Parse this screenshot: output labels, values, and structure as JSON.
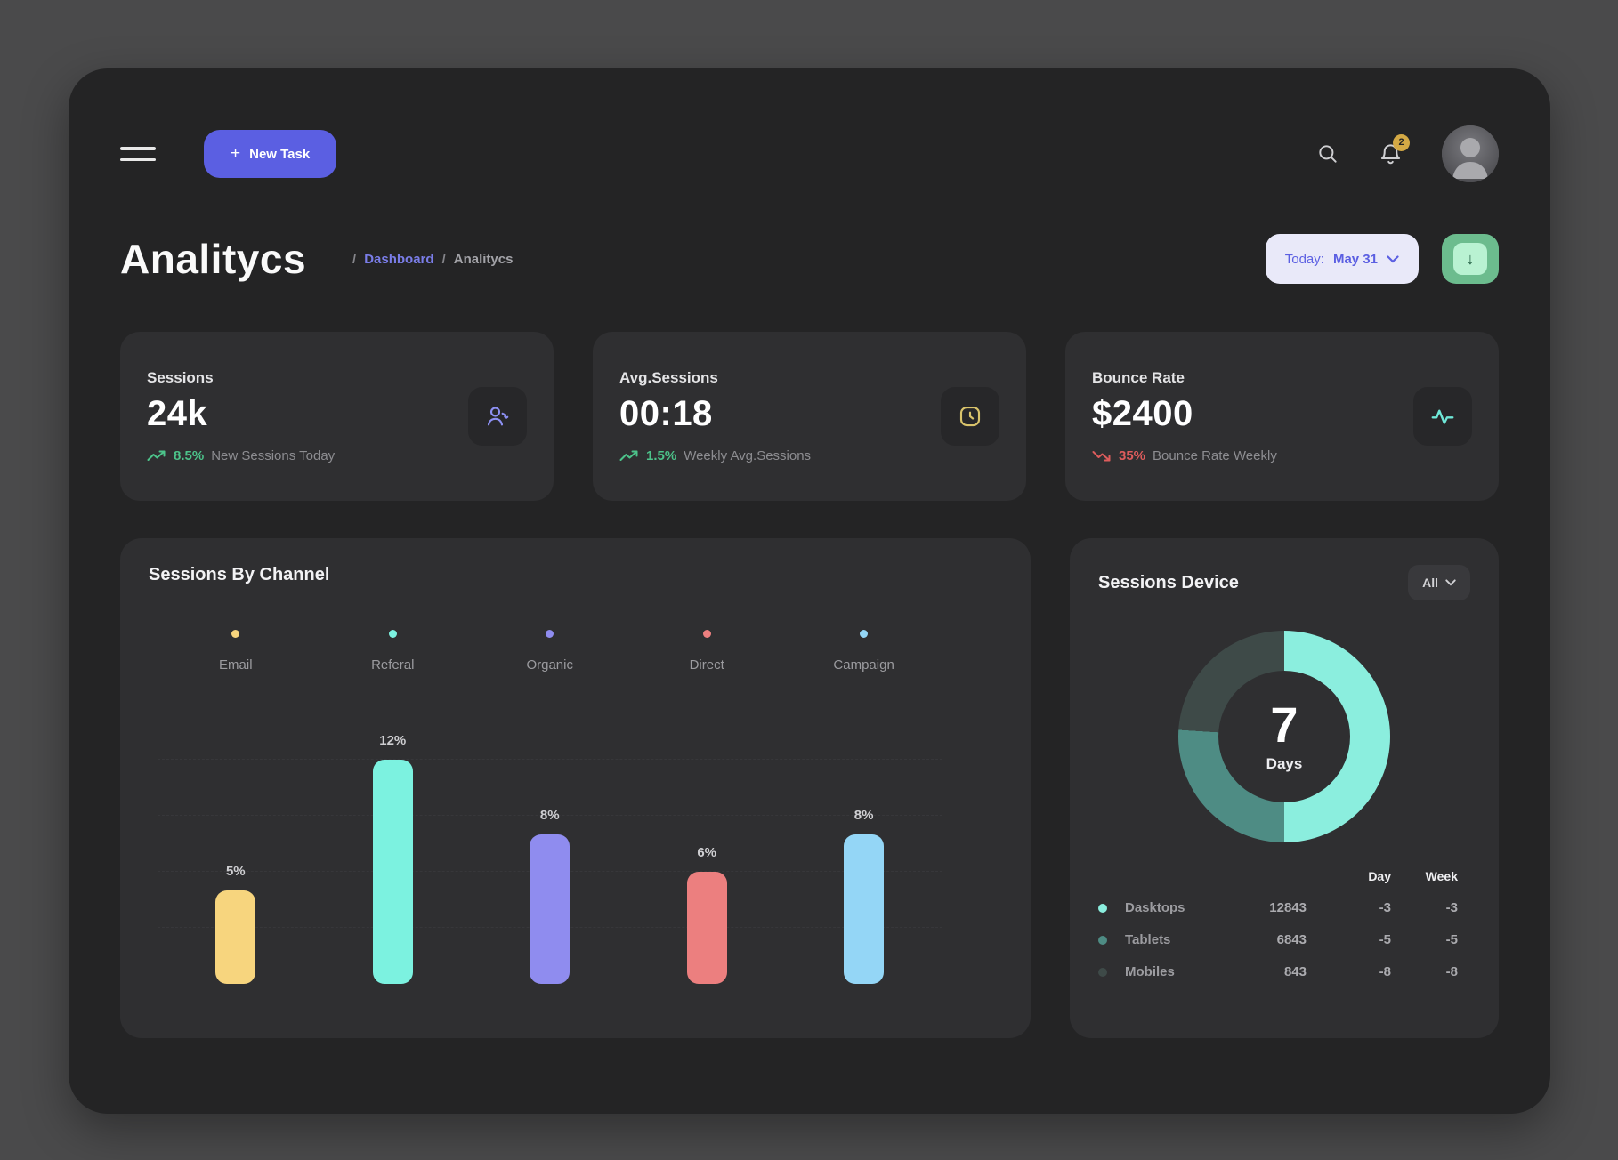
{
  "theme": {
    "outer": "#4a4a4b",
    "window": "#242425",
    "card": "#2f2f31",
    "iconbox": "#272729",
    "accent": "#5b5fe2",
    "green": "#4cc38a",
    "red": "#dd5c5c",
    "gold": "#d4a945",
    "pill": "#e9e9f9",
    "dl": "#6cbc8e",
    "dl-inner": "#b9f2d2"
  },
  "topbar": {
    "plus": "+",
    "new_task_label": "New Task",
    "notification_count": "2"
  },
  "header": {
    "title": "Analitycs",
    "breadcrumb_sep": "/",
    "breadcrumb_link": "Dashboard",
    "breadcrumb_current": "Analitycs",
    "date_label": "Today:",
    "date_value": "May 31",
    "download_arrow": "↓"
  },
  "stats": [
    {
      "label": "Sessions",
      "value": "24k",
      "trend_value": "8.5%",
      "trend_text": "New Sessions Today",
      "direction": "up",
      "icon": "users-icon"
    },
    {
      "label": "Avg.Sessions",
      "value": "00:18",
      "trend_value": "1.5%",
      "trend_text": "Weekly Avg.Sessions",
      "direction": "up",
      "icon": "clock-icon"
    },
    {
      "label": "Bounce Rate",
      "value": "$2400",
      "trend_value": "35%",
      "trend_text": "Bounce Rate Weekly",
      "direction": "down",
      "icon": "activity-icon"
    }
  ],
  "channel": {
    "title": "Sessions By Channel",
    "max_value": 12,
    "items": [
      {
        "label": "Email",
        "value": 5,
        "value_label": "5%",
        "color": "#f7d57e"
      },
      {
        "label": "Referal",
        "value": 12,
        "value_label": "12%",
        "color": "#7cf2e0"
      },
      {
        "label": "Organic",
        "value": 8,
        "value_label": "8%",
        "color": "#8f8cef"
      },
      {
        "label": "Direct",
        "value": 6,
        "value_label": "6%",
        "color": "#ec7f7f"
      },
      {
        "label": "Campaign",
        "value": 8,
        "value_label": "8%",
        "color": "#94d6f6"
      }
    ]
  },
  "device": {
    "title": "Sessions Device",
    "filter_label": "All",
    "center_value": "7",
    "center_label": "Days",
    "donut": [
      {
        "color": "#8beede",
        "pct": 50
      },
      {
        "color": "#4e8c84",
        "pct": 26
      },
      {
        "color": "#3e4a48",
        "pct": 24
      }
    ],
    "col_day": "Day",
    "col_week": "Week",
    "rows": [
      {
        "label": "Dasktops",
        "value": "12843",
        "day": "-3",
        "week": "-3",
        "color": "#8beede"
      },
      {
        "label": "Tablets",
        "value": "6843",
        "day": "-5",
        "week": "-5",
        "color": "#4e8c84"
      },
      {
        "label": "Mobiles",
        "value": "843",
        "day": "-8",
        "week": "-8",
        "color": "#3e4a48"
      }
    ]
  },
  "chart_data": [
    {
      "type": "bar",
      "title": "Sessions By Channel",
      "categories": [
        "Email",
        "Referal",
        "Organic",
        "Direct",
        "Campaign"
      ],
      "values": [
        5,
        12,
        8,
        6,
        8
      ],
      "unit": "%",
      "colors": [
        "#f7d57e",
        "#7cf2e0",
        "#8f8cef",
        "#ec7f7f",
        "#94d6f6"
      ],
      "ylim": [
        0,
        12
      ],
      "legend_position": "top",
      "grid": "dashed-horizontal",
      "data_labels": [
        "5%",
        "12%",
        "8%",
        "6%",
        "8%"
      ]
    },
    {
      "type": "pie",
      "title": "Sessions Device",
      "subtype": "donut",
      "center_text": [
        "7",
        "Days"
      ],
      "slices": [
        {
          "label": "Dasktops",
          "arc_pct": 50,
          "sessions": 12843,
          "day_change": -3,
          "week_change": -3,
          "color": "#8beede"
        },
        {
          "label": "Tablets",
          "arc_pct": 26,
          "sessions": 6843,
          "day_change": -5,
          "week_change": -5,
          "color": "#4e8c84"
        },
        {
          "label": "Mobiles",
          "arc_pct": 24,
          "sessions": 843,
          "day_change": -8,
          "week_change": -8,
          "color": "#3e4a48"
        }
      ],
      "legend_columns": [
        "Day",
        "Week"
      ],
      "filter": "All"
    }
  ]
}
